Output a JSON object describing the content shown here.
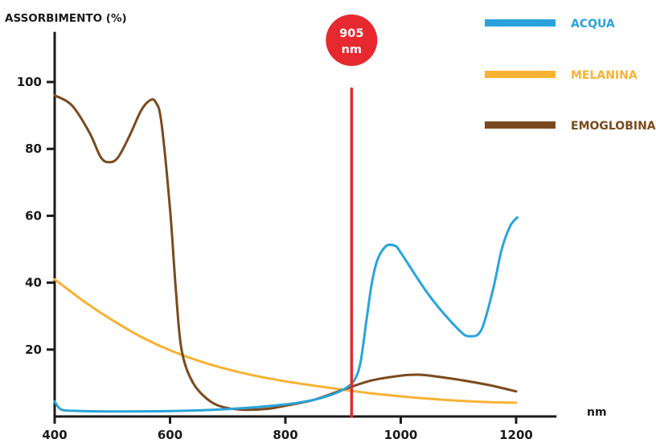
{
  "chart_data": {
    "type": "line",
    "ylabel": "ASSORBIMENTO (%)",
    "xlabel": "nm",
    "xlim": [
      400,
      1270
    ],
    "ylim": [
      0,
      115
    ],
    "x_ticks": [
      400,
      600,
      800,
      1000,
      1200
    ],
    "y_ticks": [
      20,
      40,
      60,
      80,
      100
    ],
    "grid": false,
    "legend_position": "top-right",
    "series": [
      {
        "name": "ACQUA",
        "color": "#2aa3dc",
        "points": [
          [
            400,
            4.5
          ],
          [
            410,
            2.2
          ],
          [
            430,
            1.7
          ],
          [
            500,
            1.5
          ],
          [
            600,
            1.6
          ],
          [
            700,
            2.2
          ],
          [
            800,
            3.6
          ],
          [
            850,
            5.0
          ],
          [
            880,
            6.5
          ],
          [
            905,
            8.5
          ],
          [
            920,
            11
          ],
          [
            930,
            16
          ],
          [
            940,
            28
          ],
          [
            950,
            40
          ],
          [
            960,
            47
          ],
          [
            975,
            51
          ],
          [
            990,
            51
          ],
          [
            1000,
            49
          ],
          [
            1050,
            36
          ],
          [
            1100,
            26
          ],
          [
            1120,
            24
          ],
          [
            1140,
            26
          ],
          [
            1160,
            38
          ],
          [
            1175,
            50
          ],
          [
            1190,
            57
          ],
          [
            1202,
            59.5
          ]
        ]
      },
      {
        "name": "MELANINA",
        "color": "#f7b233",
        "points": [
          [
            400,
            41
          ],
          [
            450,
            34.5
          ],
          [
            500,
            28.8
          ],
          [
            550,
            23.8
          ],
          [
            600,
            19.8
          ],
          [
            650,
            16.6
          ],
          [
            700,
            14.1
          ],
          [
            750,
            12.1
          ],
          [
            800,
            10.5
          ],
          [
            850,
            9.2
          ],
          [
            900,
            8.0
          ],
          [
            950,
            6.9
          ],
          [
            1000,
            6.0
          ],
          [
            1050,
            5.3
          ],
          [
            1100,
            4.7
          ],
          [
            1150,
            4.3
          ],
          [
            1200,
            4.1
          ]
        ]
      },
      {
        "name": "EMOGLOBINA",
        "color": "#7a4a1e",
        "points": [
          [
            400,
            96
          ],
          [
            430,
            93
          ],
          [
            460,
            85
          ],
          [
            480,
            77.5
          ],
          [
            495,
            76
          ],
          [
            510,
            77.5
          ],
          [
            530,
            84
          ],
          [
            550,
            91.5
          ],
          [
            565,
            94.5
          ],
          [
            575,
            94
          ],
          [
            585,
            88
          ],
          [
            600,
            62
          ],
          [
            610,
            38
          ],
          [
            620,
            20
          ],
          [
            640,
            10
          ],
          [
            670,
            4.5
          ],
          [
            700,
            2.5
          ],
          [
            730,
            2.0
          ],
          [
            770,
            2.3
          ],
          [
            800,
            3.2
          ],
          [
            850,
            5.0
          ],
          [
            900,
            8.0
          ],
          [
            950,
            10.8
          ],
          [
            1000,
            12.2
          ],
          [
            1030,
            12.5
          ],
          [
            1060,
            12.0
          ],
          [
            1100,
            11.0
          ],
          [
            1150,
            9.5
          ],
          [
            1200,
            7.5
          ]
        ]
      }
    ],
    "annotation": {
      "x": 905,
      "text_line1": "905",
      "text_line2": "nm",
      "color": "#e5292e",
      "y_top": 98
    }
  }
}
